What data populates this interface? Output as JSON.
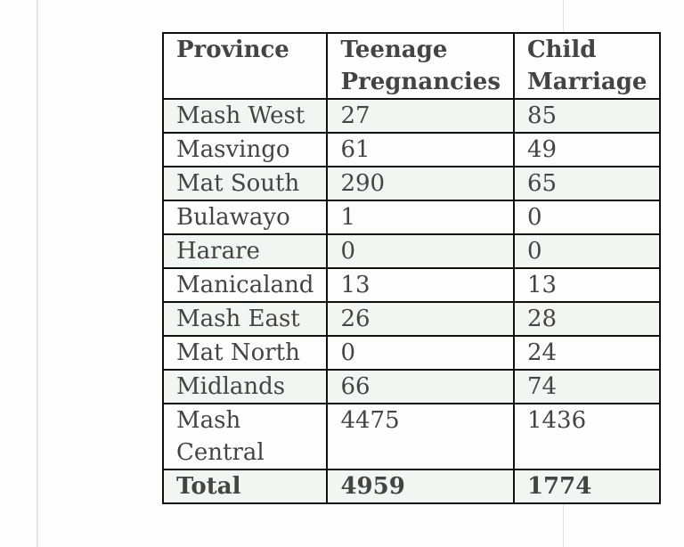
{
  "table": {
    "headers": [
      "Province",
      "Teenage Pregnancies",
      "Child Marriage"
    ],
    "rows": [
      {
        "province": "Mash West",
        "teenage_pregnancies": "27",
        "child_marriage": "85"
      },
      {
        "province": "Masvingo",
        "teenage_pregnancies": "61",
        "child_marriage": "49"
      },
      {
        "province": "Mat South",
        "teenage_pregnancies": "290",
        "child_marriage": "65"
      },
      {
        "province": "Bulawayo",
        "teenage_pregnancies": "1",
        "child_marriage": "0"
      },
      {
        "province": "Harare",
        "teenage_pregnancies": "0",
        "child_marriage": "0"
      },
      {
        "province": "Manicaland",
        "teenage_pregnancies": "13",
        "child_marriage": "13"
      },
      {
        "province": "Mash East",
        "teenage_pregnancies": "26",
        "child_marriage": "28"
      },
      {
        "province": "Mat North",
        "teenage_pregnancies": "0",
        "child_marriage": "24"
      },
      {
        "province": "Midlands",
        "teenage_pregnancies": "66",
        "child_marriage": "74"
      },
      {
        "province": "Mash Central",
        "teenage_pregnancies": "4475",
        "child_marriage": "1436"
      }
    ],
    "total": {
      "label": "Total",
      "teenage_pregnancies": "4959",
      "child_marriage": "1774"
    }
  },
  "colors": {
    "row_tint": "#f2f6f3",
    "border": "#111111",
    "text": "#444444"
  }
}
